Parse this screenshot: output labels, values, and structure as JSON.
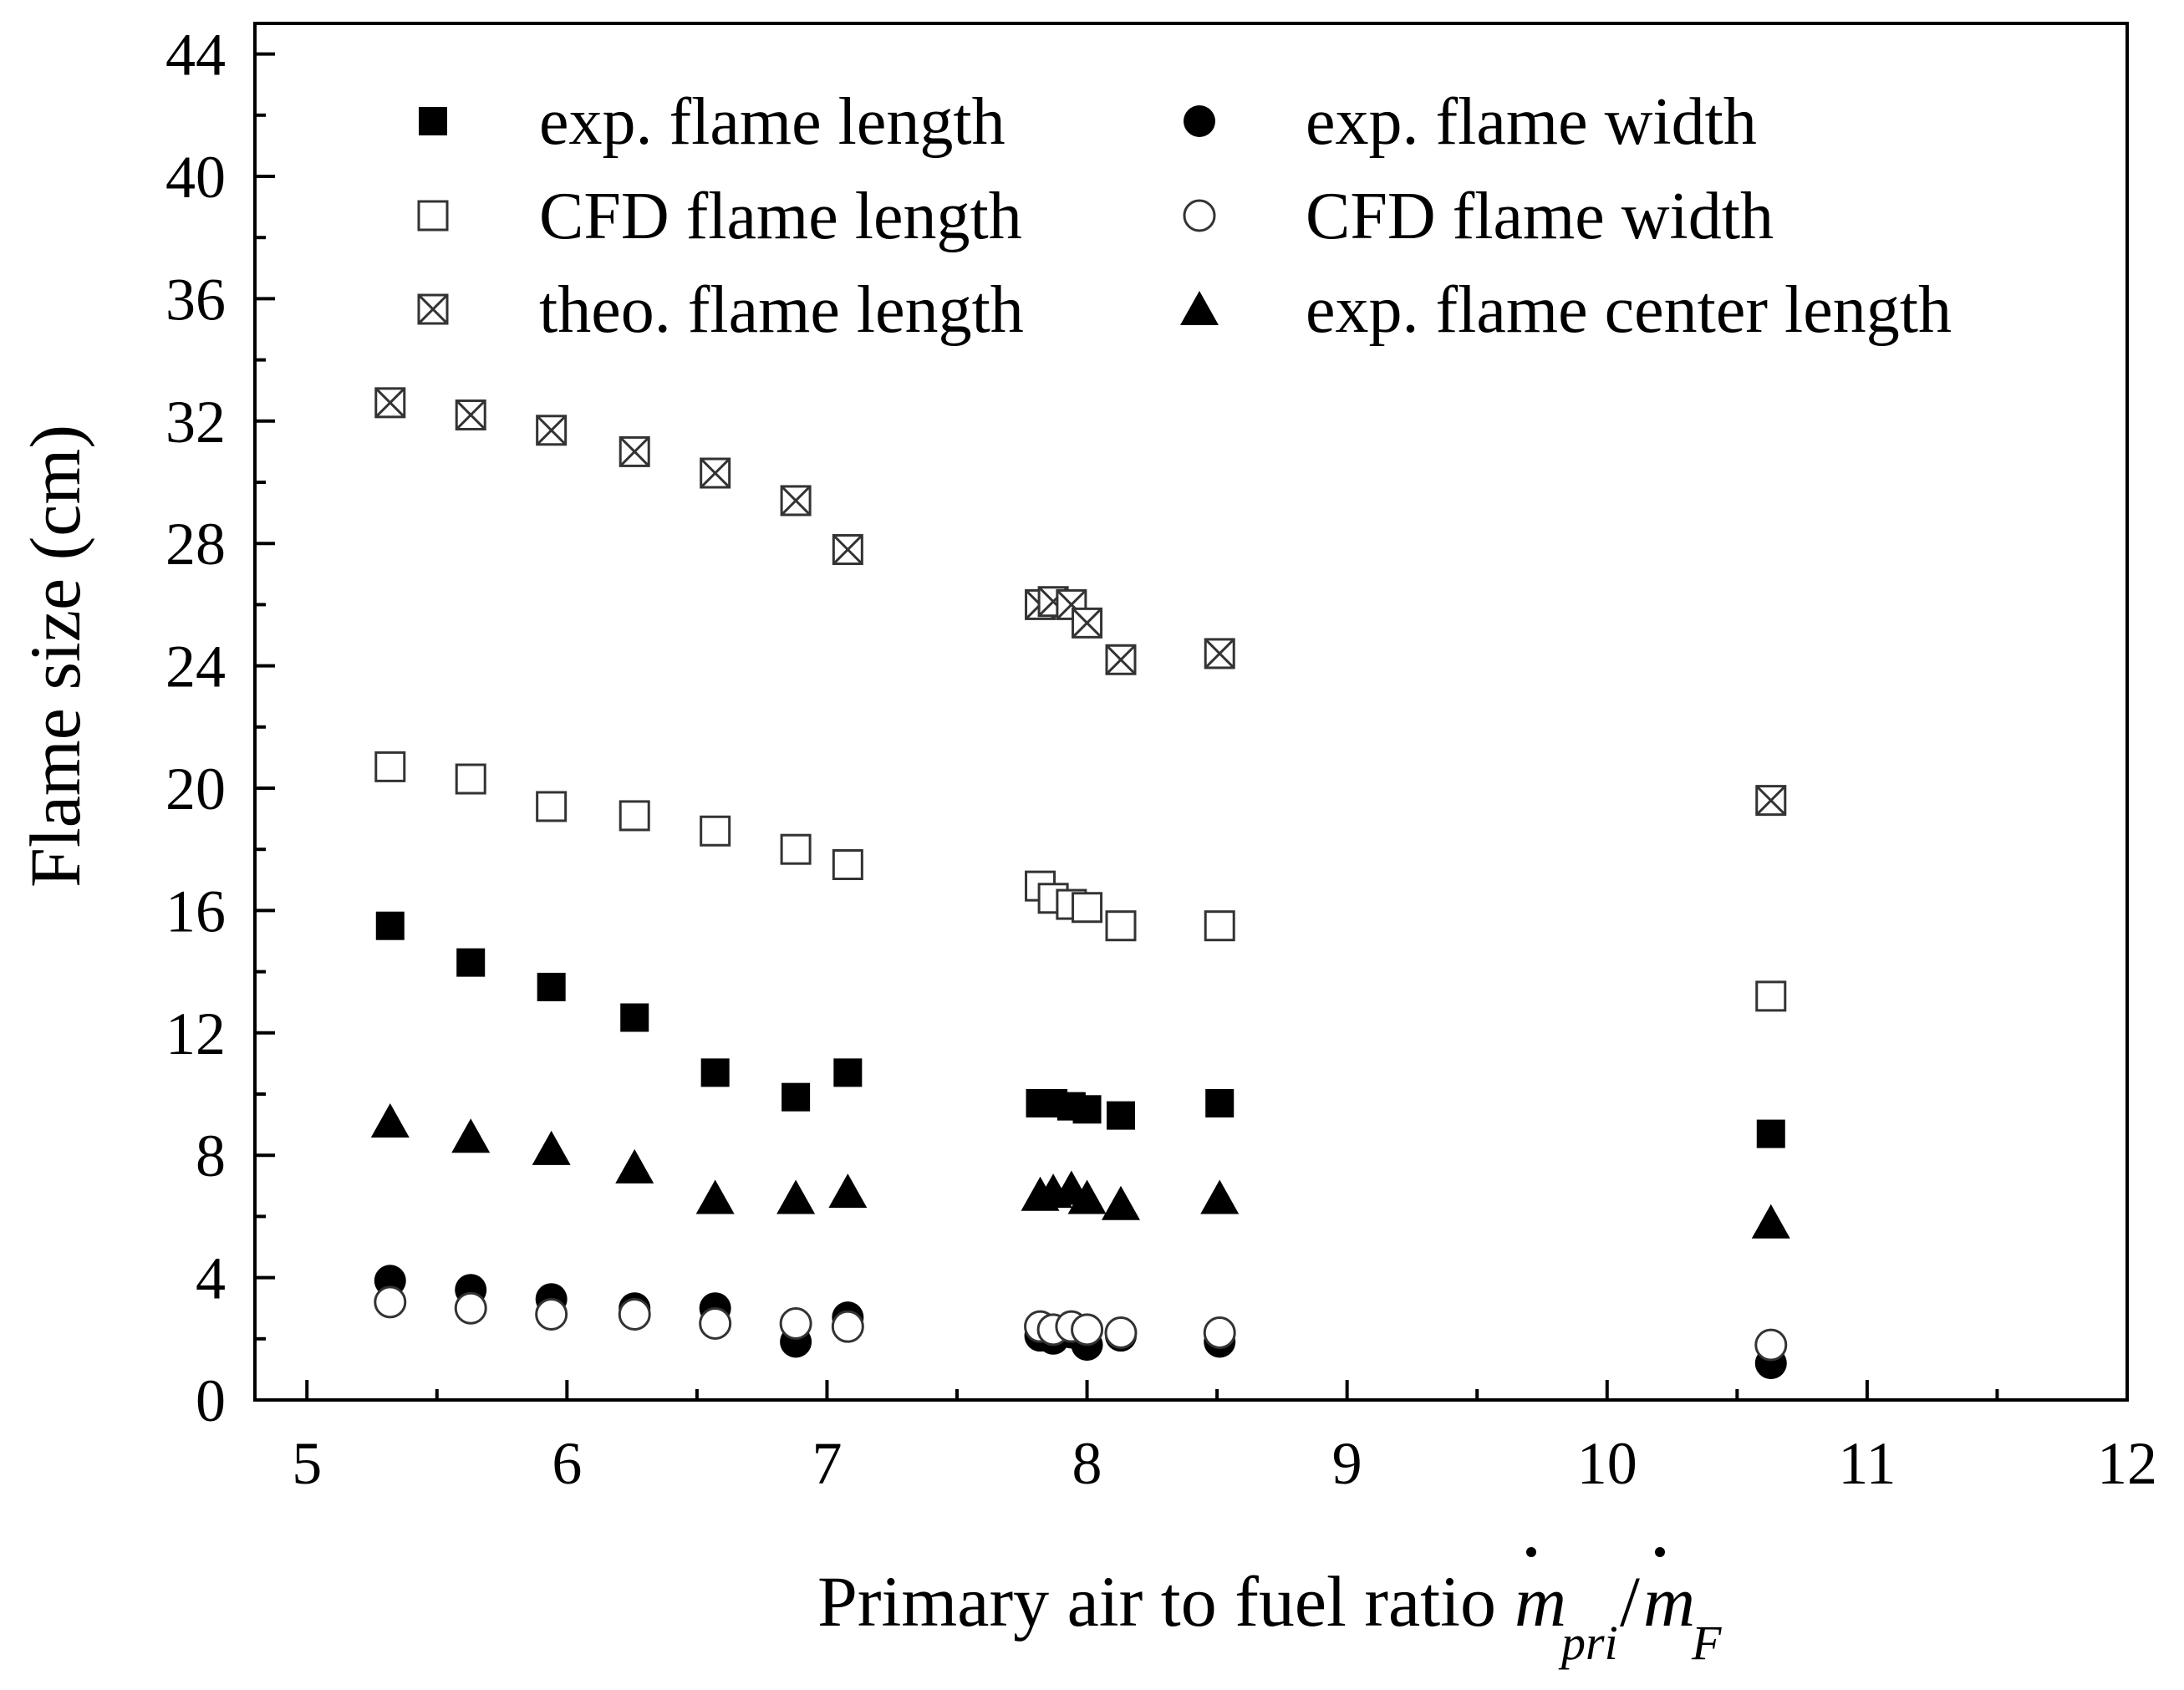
{
  "chart_data": {
    "type": "scatter",
    "xlabel": "Primary air to fuel ratio",
    "xlabel_math": {
      "m": "m",
      "pri": "pri",
      "slash": "/",
      "F": "F"
    },
    "ylabel": "Flame size (cm)",
    "xlim": [
      4.8,
      12
    ],
    "ylim": [
      0,
      45
    ],
    "xticks": [
      5,
      6,
      7,
      8,
      9,
      10,
      11,
      12
    ],
    "yticks": [
      0,
      4,
      8,
      12,
      16,
      20,
      24,
      28,
      32,
      36,
      40,
      44
    ],
    "grid": false,
    "legend_position": "top",
    "series": [
      {
        "name": "exp. flame length",
        "marker": "filled-square",
        "x": [
          5.32,
          5.63,
          5.94,
          6.26,
          6.57,
          6.88,
          7.08,
          7.82,
          7.87,
          7.94,
          8.0,
          8.13,
          8.51,
          10.63
        ],
        "y": [
          15.5,
          14.3,
          13.5,
          12.5,
          10.7,
          9.9,
          10.7,
          9.7,
          9.7,
          9.6,
          9.5,
          9.3,
          9.7,
          8.7
        ]
      },
      {
        "name": "CFD flame length",
        "marker": "open-square",
        "x": [
          5.32,
          5.63,
          5.94,
          6.26,
          6.57,
          6.88,
          7.08,
          7.82,
          7.87,
          7.94,
          8.0,
          8.13,
          8.51,
          10.63
        ],
        "y": [
          20.7,
          20.3,
          19.4,
          19.1,
          18.6,
          18.0,
          17.5,
          16.8,
          16.4,
          16.2,
          16.1,
          15.5,
          15.5,
          13.2
        ]
      },
      {
        "name": "theo. flame length",
        "marker": "crossed-square",
        "x": [
          5.32,
          5.63,
          5.94,
          6.26,
          6.57,
          6.88,
          7.08,
          7.82,
          7.87,
          7.94,
          8.0,
          8.13,
          8.51,
          10.63
        ],
        "y": [
          32.6,
          32.2,
          31.7,
          31.0,
          30.3,
          29.4,
          27.8,
          26.0,
          26.1,
          26.0,
          25.4,
          24.2,
          24.4,
          19.6
        ]
      },
      {
        "name": "exp. flame width",
        "marker": "filled-circle",
        "x": [
          5.32,
          5.63,
          5.94,
          6.26,
          6.57,
          6.88,
          7.08,
          7.82,
          7.87,
          7.94,
          8.0,
          8.13,
          8.51,
          10.63
        ],
        "y": [
          3.9,
          3.6,
          3.3,
          3.0,
          3.0,
          1.9,
          2.7,
          2.1,
          2.0,
          2.2,
          1.8,
          2.1,
          1.9,
          1.2
        ]
      },
      {
        "name": "CFD flame width",
        "marker": "open-circle",
        "x": [
          5.32,
          5.63,
          5.94,
          6.26,
          6.57,
          6.88,
          7.08,
          7.82,
          7.87,
          7.94,
          8.0,
          8.13,
          8.51,
          10.63
        ],
        "y": [
          3.2,
          3.0,
          2.8,
          2.8,
          2.5,
          2.5,
          2.4,
          2.4,
          2.3,
          2.4,
          2.3,
          2.2,
          2.2,
          1.8
        ]
      },
      {
        "name": "exp. flame center length",
        "marker": "filled-triangle",
        "x": [
          5.32,
          5.63,
          5.94,
          6.26,
          6.57,
          6.88,
          7.08,
          7.82,
          7.87,
          7.94,
          8.0,
          8.13,
          8.51,
          10.63
        ],
        "y": [
          9.1,
          8.6,
          8.2,
          7.6,
          6.6,
          6.6,
          6.8,
          6.7,
          6.8,
          6.9,
          6.6,
          6.4,
          6.6,
          5.8
        ]
      }
    ]
  }
}
